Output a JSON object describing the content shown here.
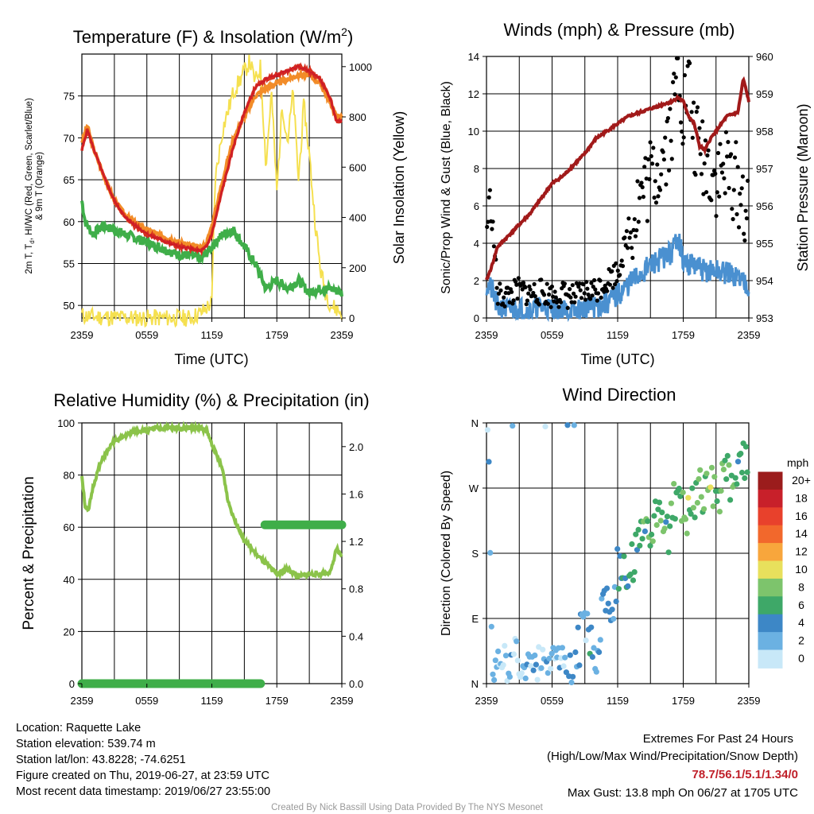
{
  "colors": {
    "red": "#d7301f",
    "orange": "#f28c28",
    "scarlet": "#c8102e",
    "green": "#3fae49",
    "yellow": "#f5e050",
    "black": "#000000",
    "blue": "#4a90d0",
    "maroon": "#a11a1a",
    "rh": "#8bc34a",
    "precip": "#3fae49",
    "extremes": "#c0202a"
  },
  "chart_data": [
    {
      "type": "line",
      "title": "Temperature (F) & Insolation (W/m2)",
      "title_main": "Temperature (F) & Insolation (W/m",
      "title_sup": "2",
      "title_end": ")",
      "xlabel": "Time (UTC)",
      "ylabel_lines": [
        "2m T, T",
        "d",
        ", HI/WC (Red, Green, Scarlet/Blue)",
        "& 9m T (Orange)"
      ],
      "y2label": "Solar Insolation (Yellow)",
      "x_ticks": [
        "2359",
        "0559",
        "1159",
        "1759",
        "2359"
      ],
      "ylim": [
        48.5,
        80
      ],
      "y_ticks": [
        50,
        55,
        60,
        65,
        70,
        75
      ],
      "y2lim": [
        0,
        1050
      ],
      "y2_ticks": [
        0,
        200,
        400,
        600,
        800,
        1000
      ],
      "grid": true,
      "series": [
        {
          "name": "2m T",
          "axis": "y",
          "x": [
            0,
            0.5,
            1,
            2,
            3,
            4,
            5,
            6,
            7,
            8,
            9,
            10,
            11,
            11.5,
            12,
            13,
            14,
            15,
            16,
            17,
            18,
            19,
            20,
            21,
            22,
            23,
            23.5,
            24
          ],
          "values": [
            68.5,
            71,
            69,
            65.5,
            62.5,
            60.5,
            59.5,
            58.5,
            58,
            57.5,
            57,
            56.8,
            56.5,
            57,
            58.5,
            64,
            69,
            73,
            76,
            77,
            77.5,
            78,
            78.5,
            78,
            77,
            74.5,
            72,
            72
          ]
        },
        {
          "name": "9m T",
          "axis": "y",
          "x": [
            0,
            0.5,
            1,
            2,
            3,
            4,
            5,
            6,
            7,
            8,
            9,
            10,
            11,
            11.5,
            12,
            13,
            14,
            15,
            16,
            17,
            18,
            19,
            20,
            21,
            22,
            23,
            23.5,
            24
          ],
          "values": [
            69.5,
            71.5,
            69,
            65.5,
            62.5,
            60.8,
            59.8,
            59,
            58.5,
            58,
            57.5,
            57.2,
            56.8,
            57.5,
            59.5,
            65,
            70,
            72.5,
            75,
            76,
            76.5,
            77,
            77.5,
            77.5,
            76.5,
            74,
            72.5,
            72.5
          ]
        },
        {
          "name": "Td",
          "axis": "y",
          "x": [
            0,
            0.3,
            1,
            2,
            3,
            4,
            5,
            6,
            7,
            8,
            9,
            10,
            11,
            12,
            13,
            14,
            15,
            16,
            17,
            18,
            19,
            20,
            21,
            22,
            23,
            24
          ],
          "values": [
            62.5,
            60,
            58.5,
            59.5,
            59,
            58.5,
            58,
            57.5,
            57,
            56.5,
            56,
            56,
            55.5,
            57,
            58.5,
            59,
            57,
            55,
            52,
            53,
            52,
            53,
            51.5,
            52,
            52,
            51.5
          ]
        },
        {
          "name": "Solar Insolation",
          "axis": "y2",
          "x": [
            0,
            1,
            2,
            3,
            4,
            5,
            6,
            7,
            8,
            9,
            10,
            11,
            11.5,
            12,
            12.3,
            13,
            14,
            15,
            15.5,
            16,
            16.5,
            17,
            17.5,
            18,
            18.5,
            19,
            19.5,
            20,
            20.5,
            21,
            21.5,
            22,
            22.5,
            23,
            24
          ],
          "values": [
            10,
            5,
            3,
            2,
            1,
            0,
            0,
            0,
            0,
            0,
            0,
            20,
            40,
            60,
            550,
            750,
            900,
            980,
            1020,
            940,
            1000,
            600,
            900,
            500,
            850,
            700,
            900,
            550,
            850,
            650,
            400,
            200,
            100,
            50,
            20
          ]
        }
      ]
    },
    {
      "type": "scatter",
      "title": "Winds (mph) & Pressure (mb)",
      "xlabel": "Time (UTC)",
      "ylabel": "Sonic/Prop Wind & Gust (Blue, Black)",
      "y2label": "Station Pressure (Maroon)",
      "x_ticks": [
        "2359",
        "0559",
        "1159",
        "1759",
        "2359"
      ],
      "ylim": [
        0,
        14
      ],
      "y_ticks": [
        0,
        2,
        4,
        6,
        8,
        10,
        12,
        14
      ],
      "y2lim": [
        953,
        960
      ],
      "y2_ticks": [
        953,
        954,
        955,
        956,
        957,
        958,
        959,
        960
      ],
      "grid": true,
      "series": [
        {
          "name": "Wind",
          "axis": "y",
          "x": [
            0,
            0.5,
            1,
            2,
            3,
            4,
            5,
            6,
            7,
            8,
            9,
            10,
            11,
            12,
            13,
            14,
            15,
            16,
            17,
            17.5,
            18,
            19,
            20,
            21,
            22,
            23,
            24
          ],
          "values": [
            1.8,
            1.5,
            0.6,
            0.4,
            0.5,
            0.4,
            0.6,
            0.5,
            0.4,
            0.3,
            0.5,
            0.6,
            0.8,
            1.2,
            1.8,
            2.3,
            2.8,
            3.2,
            3.5,
            4.5,
            3.0,
            2.8,
            2.5,
            2.5,
            2.4,
            2.2,
            1.8
          ]
        },
        {
          "name": "Gust",
          "axis": "y",
          "x": [
            0,
            0.3,
            0.7,
            1,
            2,
            3,
            4,
            5,
            6,
            7,
            8,
            9,
            10,
            11,
            12,
            13,
            14,
            15,
            16,
            17,
            17.5,
            18,
            18.5,
            19,
            20,
            21,
            22,
            23,
            24
          ],
          "values": [
            4.5,
            6.5,
            4.0,
            1.2,
            1.2,
            1.5,
            1.3,
            1.4,
            1.2,
            1.3,
            1.1,
            1.4,
            1.5,
            2.0,
            2.5,
            4.5,
            6.5,
            7.5,
            8.5,
            10.5,
            13.8,
            11,
            12.5,
            9.5,
            8.5,
            7.5,
            8.0,
            7.0,
            5.5
          ]
        },
        {
          "name": "Station Pressure",
          "axis": "y2",
          "x": [
            0,
            0.5,
            1,
            2,
            3,
            4,
            5,
            6,
            7,
            8,
            9,
            10,
            11,
            12,
            13,
            14,
            15,
            16,
            17,
            17.5,
            18,
            18.5,
            19,
            19.5,
            20,
            20.5,
            21,
            22,
            23,
            23.5,
            24
          ],
          "values": [
            954,
            954.4,
            954.9,
            955.2,
            955.5,
            955.8,
            956.2,
            956.6,
            956.8,
            957.1,
            957.4,
            957.8,
            958.0,
            958.2,
            958.4,
            958.5,
            958.6,
            958.7,
            958.8,
            958.9,
            958.8,
            958.4,
            958.2,
            957.6,
            957.5,
            957.8,
            958.0,
            958.4,
            958.5,
            959.4,
            958.8
          ]
        }
      ]
    },
    {
      "type": "line",
      "title": "Relative Humidity (%) & Precipitation (in)",
      "xlabel": "",
      "ylabel": "Percent & Precipitation",
      "x_ticks": [
        "2359",
        "0559",
        "1159",
        "1759",
        "2359"
      ],
      "ylim": [
        0,
        100
      ],
      "y_ticks": [
        0,
        20,
        40,
        60,
        80,
        100
      ],
      "y2lim": [
        0,
        2.2
      ],
      "y2_ticks": [
        "0.0",
        "0.4",
        "0.8",
        "1.2",
        "1.6",
        "2.0"
      ],
      "grid": true,
      "series": [
        {
          "name": "Relative Humidity",
          "axis": "y",
          "x": [
            0,
            0.3,
            0.6,
            1,
            1.5,
            2,
            3,
            4,
            5,
            6,
            7,
            8,
            9,
            10,
            11,
            11.5,
            12,
            13,
            13.5,
            14,
            15,
            16,
            17,
            18,
            19,
            20,
            21,
            22,
            23,
            23.5,
            24
          ],
          "values": [
            80,
            68,
            66,
            75,
            82,
            87,
            93,
            95,
            97,
            97,
            98,
            98,
            98,
            98,
            98,
            97,
            92,
            82,
            70,
            64,
            55,
            50,
            46,
            42,
            44,
            41,
            42,
            42,
            43,
            52,
            48
          ]
        },
        {
          "name": "Precipitation",
          "axis": "y2",
          "x": [
            0,
            1,
            2,
            3,
            4,
            5,
            6,
            7,
            8,
            9,
            10,
            11,
            12,
            13,
            14,
            15,
            16,
            16.5,
            17,
            18,
            19,
            20,
            21,
            22,
            23,
            24
          ],
          "values": [
            0,
            0,
            0,
            0,
            0,
            0,
            0,
            0,
            0,
            0,
            0,
            0,
            0,
            0,
            0,
            0,
            0,
            0,
            1.34,
            1.34,
            1.34,
            1.34,
            1.34,
            1.34,
            1.34,
            1.34
          ]
        }
      ]
    },
    {
      "type": "scatter",
      "title": "Wind Direction",
      "ylabel": "Direction (Colored By Speed)",
      "x_ticks": [
        "2359",
        "0559",
        "1159",
        "1759",
        "2359"
      ],
      "y_ticks": [
        "N",
        "E",
        "S",
        "W",
        "N"
      ],
      "ylim": [
        0,
        360
      ],
      "grid": true,
      "colorbar": {
        "title": "mph",
        "labels": [
          "20+",
          "18",
          "16",
          "14",
          "12",
          "10",
          "8",
          "6",
          "4",
          "2",
          "0"
        ],
        "colors": [
          "#9b1c1c",
          "#c8202a",
          "#e8412c",
          "#f2682c",
          "#f8a63c",
          "#e8e05c",
          "#7dc46c",
          "#3ea868",
          "#3d87c6",
          "#6bb1e2",
          "#c8e8f8"
        ]
      },
      "series": [
        {
          "name": "Wind Direction",
          "x": [
            0.2,
            0.5,
            1,
            1.5,
            2,
            2.5,
            3,
            3.5,
            4,
            4.5,
            5,
            5.5,
            6,
            6.5,
            7,
            7.5,
            8,
            8.5,
            9,
            9.5,
            10,
            10.5,
            11,
            11.5,
            12,
            12.5,
            13,
            13.5,
            14,
            14.5,
            15,
            15.5,
            16,
            16.5,
            17,
            17.5,
            18,
            18.5,
            19,
            19.5,
            20,
            20.5,
            21,
            21.5,
            22,
            22.5,
            23,
            23.5,
            24
          ],
          "values": [
            350,
            30,
            20,
            40,
            10,
            50,
            25,
            15,
            45,
            20,
            35,
            10,
            30,
            25,
            40,
            15,
            30,
            60,
            90,
            50,
            40,
            100,
            120,
            110,
            160,
            170,
            150,
            180,
            200,
            190,
            210,
            220,
            230,
            200,
            240,
            250,
            260,
            230,
            240,
            270,
            250,
            280,
            260,
            270,
            300,
            280,
            290,
            300,
            320
          ],
          "speeds": [
            1,
            1,
            1,
            0,
            1,
            1,
            0,
            1,
            1,
            1,
            0,
            1,
            1,
            1,
            1,
            2,
            1,
            2,
            1,
            2,
            1,
            2,
            2,
            2,
            2,
            3,
            3,
            3,
            3,
            3,
            3,
            4,
            4,
            3,
            4,
            3,
            4,
            4,
            3,
            4,
            3,
            4,
            3,
            4,
            3,
            4,
            3,
            3,
            3
          ]
        }
      ]
    }
  ],
  "station_info": {
    "location": "Location: Raquette Lake",
    "elevation": "Station elevation: 539.74 m",
    "latlon": "Station lat/lon: 43.8228; -74.6251",
    "created": "Figure created on Thu, 2019-06-27, at 23:59 UTC",
    "recent": "Most recent data timestamp: 2019/06/27 23:55:00"
  },
  "extremes": {
    "title": "Extremes For Past 24 Hours",
    "subtitle": "(High/Low/Max Wind/Precipitation/Snow Depth)",
    "values": "78.7/56.1/5.1/1.34/0",
    "max_gust": "Max Gust: 13.8 mph On 06/27 at 1705 UTC"
  },
  "credit": "Created By Nick Bassill Using Data Provided By The NYS Mesonet"
}
